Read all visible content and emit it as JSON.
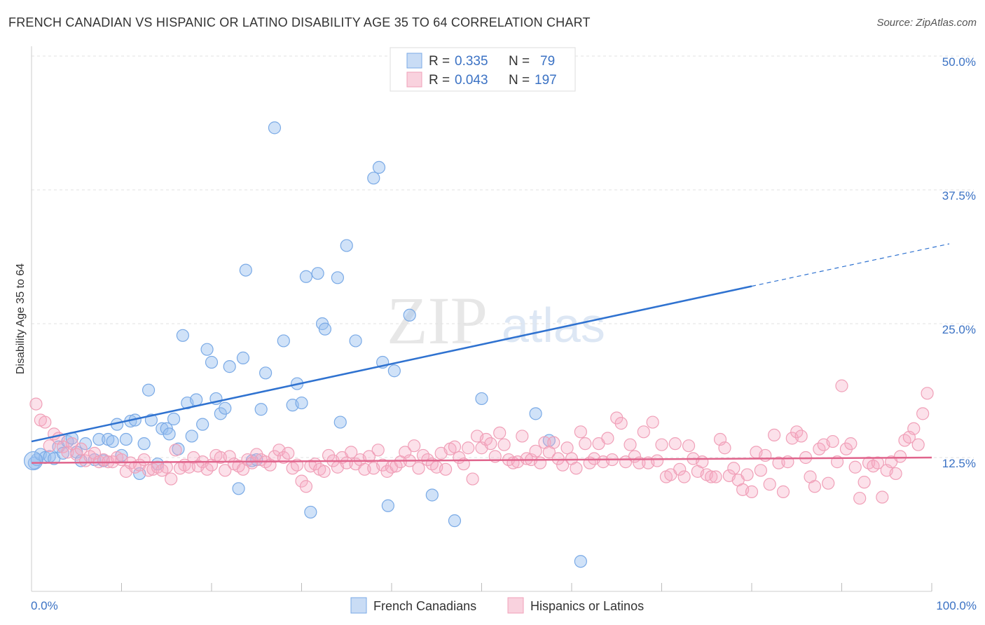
{
  "title": "FRENCH CANADIAN VS HISPANIC OR LATINO DISABILITY AGE 35 TO 64 CORRELATION CHART",
  "source": "Source: ZipAtlas.com",
  "watermark": {
    "part1": "ZIP",
    "part2": "atlas"
  },
  "chart_data": {
    "type": "scatter",
    "title": "FRENCH CANADIAN VS HISPANIC OR LATINO DISABILITY AGE 35 TO 64 CORRELATION CHART",
    "xlabel": "",
    "ylabel": "Disability Age 35 to 64",
    "xlim": [
      0,
      100
    ],
    "ylim": [
      0,
      50
    ],
    "x_tick_labels": {
      "min": "0.0%",
      "max": "100.0%"
    },
    "y_ticks": [
      12.5,
      25.0,
      37.5,
      50.0
    ],
    "y_tick_labels": [
      "12.5%",
      "25.0%",
      "37.5%",
      "50.0%"
    ],
    "grid": "horizontal dashed",
    "legend_position": "top-center",
    "series": [
      {
        "name": "French Canadians",
        "color": "#7aaae6",
        "line_color": "#2f72d0",
        "R": "0.335",
        "N": "79",
        "trend": {
          "x0": 0,
          "y0": 14.0,
          "x1": 80,
          "y1": 28.5,
          "dash_to_x": 100,
          "dash_to_y": 32.2
        },
        "points": [
          [
            0.3,
            12.0
          ],
          [
            0.6,
            12.3
          ],
          [
            1,
            12.8
          ],
          [
            1.5,
            12.5
          ],
          [
            2,
            12.6
          ],
          [
            2.5,
            12.4
          ],
          [
            3,
            13.5
          ],
          [
            3.5,
            12.9
          ],
          [
            4,
            14.0
          ],
          [
            4.5,
            14.3
          ],
          [
            5,
            13.0
          ],
          [
            5.5,
            12.2
          ],
          [
            6,
            13.8
          ],
          [
            7,
            12.3
          ],
          [
            7.5,
            14.2
          ],
          [
            8,
            12.2
          ],
          [
            8.5,
            14.2
          ],
          [
            9,
            14.0
          ],
          [
            9.5,
            15.6
          ],
          [
            10,
            12.7
          ],
          [
            10.5,
            14.2
          ],
          [
            11,
            15.9
          ],
          [
            11.5,
            16.0
          ],
          [
            12,
            11.0
          ],
          [
            12.5,
            13.8
          ],
          [
            13,
            18.8
          ],
          [
            13.3,
            16.0
          ],
          [
            14,
            11.9
          ],
          [
            14.5,
            15.2
          ],
          [
            15,
            15.2
          ],
          [
            15.3,
            14.7
          ],
          [
            15.8,
            16.1
          ],
          [
            16.3,
            13.3
          ],
          [
            16.8,
            23.9
          ],
          [
            17.3,
            17.6
          ],
          [
            17.8,
            14.5
          ],
          [
            18.3,
            17.9
          ],
          [
            19,
            15.6
          ],
          [
            19.5,
            22.6
          ],
          [
            20,
            21.4
          ],
          [
            20.5,
            18.0
          ],
          [
            21,
            16.6
          ],
          [
            21.5,
            17.1
          ],
          [
            22,
            21.0
          ],
          [
            23,
            9.6
          ],
          [
            23.5,
            21.8
          ],
          [
            23.8,
            30.0
          ],
          [
            24.5,
            12.2
          ],
          [
            25,
            12.3
          ],
          [
            25.5,
            17.0
          ],
          [
            26,
            20.4
          ],
          [
            27,
            43.3
          ],
          [
            28,
            23.4
          ],
          [
            29,
            17.4
          ],
          [
            29.5,
            19.4
          ],
          [
            30,
            17.6
          ],
          [
            30.5,
            29.4
          ],
          [
            31,
            7.4
          ],
          [
            31.8,
            29.7
          ],
          [
            32.3,
            25.0
          ],
          [
            32.6,
            24.5
          ],
          [
            34,
            29.3
          ],
          [
            34.3,
            15.8
          ],
          [
            35,
            32.3
          ],
          [
            36,
            23.4
          ],
          [
            38,
            38.6
          ],
          [
            38.6,
            39.6
          ],
          [
            39,
            21.4
          ],
          [
            39.6,
            8.0
          ],
          [
            40.3,
            20.6
          ],
          [
            42,
            25.8
          ],
          [
            44.5,
            9.0
          ],
          [
            47,
            6.6
          ],
          [
            50,
            18.0
          ],
          [
            56,
            16.6
          ],
          [
            57.5,
            14.1
          ],
          [
            61,
            2.8
          ]
        ]
      },
      {
        "name": "Hispanics or Latinos",
        "color": "#f0a0b8",
        "line_color": "#e0648c",
        "R": "0.043",
        "N": "197",
        "trend": {
          "x0": 0,
          "y0": 12.0,
          "x1": 100,
          "y1": 12.5
        },
        "points": [
          [
            0.5,
            17.5
          ],
          [
            1,
            16.0
          ],
          [
            1.5,
            15.8
          ],
          [
            2,
            13.6
          ],
          [
            2.5,
            14.7
          ],
          [
            3,
            14.3
          ],
          [
            3.5,
            13.5
          ],
          [
            4,
            13.0
          ],
          [
            4.5,
            13.8
          ],
          [
            5,
            12.8
          ],
          [
            5.5,
            13.3
          ],
          [
            6,
            12.2
          ],
          [
            6.5,
            12.6
          ],
          [
            7,
            12.9
          ],
          [
            7.5,
            12.1
          ],
          [
            8,
            12.3
          ],
          [
            8.5,
            12.1
          ],
          [
            9,
            12.1
          ],
          [
            9.5,
            12.5
          ],
          [
            10,
            12.3
          ],
          [
            10.5,
            11.2
          ],
          [
            11,
            12.0
          ],
          [
            11.5,
            11.6
          ],
          [
            12,
            11.8
          ],
          [
            12.5,
            12.3
          ],
          [
            13,
            11.3
          ],
          [
            13.5,
            11.4
          ],
          [
            14,
            11.6
          ],
          [
            14.5,
            11.3
          ],
          [
            15,
            11.6
          ],
          [
            15.5,
            10.5
          ],
          [
            16,
            13.2
          ],
          [
            16.5,
            11.5
          ],
          [
            17,
            11.8
          ],
          [
            17.5,
            11.6
          ],
          [
            18,
            12.5
          ],
          [
            18.5,
            11.7
          ],
          [
            19,
            12.1
          ],
          [
            19.5,
            11.4
          ],
          [
            20,
            11.8
          ],
          [
            20.5,
            12.7
          ],
          [
            21,
            12.5
          ],
          [
            21.5,
            11.3
          ],
          [
            22,
            12.6
          ],
          [
            22.5,
            11.9
          ],
          [
            23,
            11.7
          ],
          [
            23.5,
            11.4
          ],
          [
            24,
            12.3
          ],
          [
            24.5,
            12.0
          ],
          [
            25,
            12.8
          ],
          [
            25.5,
            12.3
          ],
          [
            26,
            12.1
          ],
          [
            26.5,
            11.8
          ],
          [
            27,
            12.6
          ],
          [
            27.5,
            13.2
          ],
          [
            28,
            12.5
          ],
          [
            28.5,
            12.9
          ],
          [
            29,
            11.5
          ],
          [
            29.5,
            11.8
          ],
          [
            30,
            10.3
          ],
          [
            30.5,
            9.8
          ],
          [
            31,
            11.7
          ],
          [
            31.5,
            11.9
          ],
          [
            32,
            11.4
          ],
          [
            32.5,
            11.2
          ],
          [
            33,
            12.7
          ],
          [
            33.5,
            12.2
          ],
          [
            34,
            11.6
          ],
          [
            34.5,
            12.5
          ],
          [
            35,
            12.0
          ],
          [
            35.5,
            13.0
          ],
          [
            36,
            11.9
          ],
          [
            36.5,
            12.3
          ],
          [
            37,
            11.4
          ],
          [
            37.5,
            12.6
          ],
          [
            38,
            11.5
          ],
          [
            38.5,
            13.2
          ],
          [
            39,
            11.8
          ],
          [
            39.5,
            11.2
          ],
          [
            40,
            11.6
          ],
          [
            40.5,
            11.7
          ],
          [
            41,
            12.1
          ],
          [
            41.5,
            13.0
          ],
          [
            42,
            12.2
          ],
          [
            42.5,
            13.6
          ],
          [
            43,
            11.5
          ],
          [
            43.5,
            12.7
          ],
          [
            44,
            12.3
          ],
          [
            44.5,
            11.9
          ],
          [
            45,
            11.6
          ],
          [
            45.5,
            12.9
          ],
          [
            46,
            11.4
          ],
          [
            46.5,
            13.3
          ],
          [
            47,
            13.5
          ],
          [
            47.5,
            12.5
          ],
          [
            48,
            11.9
          ],
          [
            48.5,
            13.4
          ],
          [
            49,
            10.5
          ],
          [
            49.5,
            14.5
          ],
          [
            50,
            13.4
          ],
          [
            50.5,
            14.2
          ],
          [
            51,
            13.8
          ],
          [
            51.5,
            12.6
          ],
          [
            52,
            14.8
          ],
          [
            52.5,
            13.7
          ],
          [
            53,
            12.3
          ],
          [
            53.5,
            12.0
          ],
          [
            54,
            12.1
          ],
          [
            54.5,
            14.5
          ],
          [
            55,
            12.4
          ],
          [
            55.5,
            12.3
          ],
          [
            56,
            13.1
          ],
          [
            56.5,
            12.0
          ],
          [
            57,
            13.9
          ],
          [
            57.5,
            13.0
          ],
          [
            58,
            13.9
          ],
          [
            58.5,
            12.4
          ],
          [
            59,
            11.8
          ],
          [
            59.5,
            13.4
          ],
          [
            60,
            12.4
          ],
          [
            60.5,
            11.5
          ],
          [
            61,
            14.9
          ],
          [
            61.5,
            13.8
          ],
          [
            62,
            12.0
          ],
          [
            62.5,
            12.4
          ],
          [
            63,
            13.8
          ],
          [
            63.5,
            12.1
          ],
          [
            64,
            14.3
          ],
          [
            64.5,
            12.3
          ],
          [
            65,
            16.2
          ],
          [
            65.5,
            15.7
          ],
          [
            66,
            12.1
          ],
          [
            66.5,
            13.7
          ],
          [
            67,
            12.6
          ],
          [
            67.5,
            12.0
          ],
          [
            68,
            14.9
          ],
          [
            68.5,
            12.0
          ],
          [
            69,
            15.8
          ],
          [
            69.5,
            12.2
          ],
          [
            70,
            13.7
          ],
          [
            70.5,
            10.7
          ],
          [
            71,
            10.9
          ],
          [
            71.5,
            13.8
          ],
          [
            72,
            11.4
          ],
          [
            72.5,
            10.7
          ],
          [
            73,
            13.6
          ],
          [
            73.5,
            12.4
          ],
          [
            74,
            11.2
          ],
          [
            74.5,
            12.1
          ],
          [
            75,
            10.9
          ],
          [
            75.5,
            10.7
          ],
          [
            76,
            10.7
          ],
          [
            76.5,
            14.2
          ],
          [
            77,
            13.4
          ],
          [
            77.5,
            10.8
          ],
          [
            78,
            11.5
          ],
          [
            78.5,
            10.4
          ],
          [
            79,
            9.5
          ],
          [
            79.5,
            10.9
          ],
          [
            80,
            9.3
          ],
          [
            80.5,
            13.0
          ],
          [
            81,
            11.3
          ],
          [
            81.5,
            12.7
          ],
          [
            82,
            10.0
          ],
          [
            82.5,
            14.6
          ],
          [
            83,
            12.0
          ],
          [
            83.5,
            9.3
          ],
          [
            84,
            12.1
          ],
          [
            84.5,
            14.3
          ],
          [
            85,
            14.9
          ],
          [
            85.5,
            14.5
          ],
          [
            86,
            12.5
          ],
          [
            86.5,
            10.7
          ],
          [
            87,
            9.8
          ],
          [
            87.5,
            13.3
          ],
          [
            88,
            13.7
          ],
          [
            88.5,
            10.1
          ],
          [
            89,
            14.0
          ],
          [
            89.5,
            12.1
          ],
          [
            90,
            19.2
          ],
          [
            90.5,
            13.3
          ],
          [
            91,
            13.8
          ],
          [
            91.5,
            11.6
          ],
          [
            92,
            8.7
          ],
          [
            92.5,
            10.2
          ],
          [
            93,
            12.0
          ],
          [
            93.5,
            11.7
          ],
          [
            94,
            12.0
          ],
          [
            94.5,
            8.8
          ],
          [
            95,
            11.3
          ],
          [
            95.5,
            12.1
          ],
          [
            96,
            11.0
          ],
          [
            96.5,
            12.6
          ],
          [
            97,
            14.1
          ],
          [
            97.5,
            14.4
          ],
          [
            98,
            15.2
          ],
          [
            98.5,
            13.7
          ],
          [
            99,
            16.6
          ],
          [
            99.5,
            18.5
          ]
        ]
      }
    ]
  },
  "legend_bottom": [
    {
      "label": "French Canadians"
    },
    {
      "label": "Hispanics or Latinos"
    }
  ],
  "legend_top": [
    {
      "r_label": "R = ",
      "r_value": "0.335",
      "n_label": "N = ",
      "n_value": "79"
    },
    {
      "r_label": "R = ",
      "r_value": "0.043",
      "n_label": "N = ",
      "n_value": "197"
    }
  ]
}
